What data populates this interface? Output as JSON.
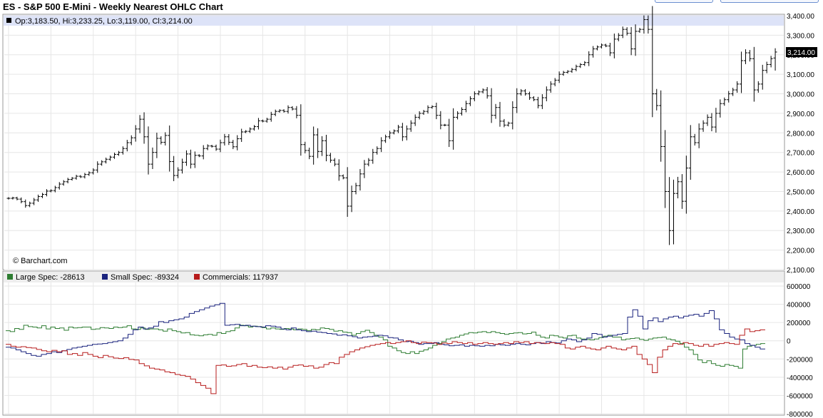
{
  "header": {
    "title": "ES - S&P 500 E-Mini - Weekly Nearest OHLC Chart"
  },
  "price_panel": {
    "ohlc_label": "Op:3,183.50, Hi:3,233.25, Lo:3,119.00, Cl:3,214.00",
    "last_price_label": "3,214.00",
    "copyright": "© Barchart.com"
  },
  "cot_panel": {
    "legend": [
      {
        "label": "Large Spec: -28613",
        "color": "#2e7d32"
      },
      {
        "label": "Small Spec: -89324",
        "color": "#1a237e"
      },
      {
        "label": "Commercials: 117937",
        "color": "#b71c1c"
      }
    ]
  },
  "colors": {
    "bar": "#000000",
    "grid": "#e6e6e6",
    "highlight": "#dde3f8",
    "legend_bg": "#eeeeee"
  },
  "chart_data": [
    {
      "type": "ohlc",
      "title": "ES - S&P 500 E-Mini - Weekly Nearest OHLC Chart",
      "ylim": [
        2100,
        3400
      ],
      "y_ticks": [
        "2,100.00",
        "2,200.00",
        "2,300.00",
        "2,400.00",
        "2,500.00",
        "2,600.00",
        "2,700.00",
        "2,800.00",
        "2,900.00",
        "3,000.00",
        "3,100.00",
        "3,200.00",
        "3,300.00",
        "3,400.00"
      ],
      "y_tick_values": [
        2100,
        2200,
        2300,
        2400,
        2500,
        2600,
        2700,
        2800,
        2900,
        3000,
        3100,
        3200,
        3300,
        3400
      ],
      "grid": true,
      "last_bar": {
        "open": 3183.5,
        "high": 3233.25,
        "low": 3119.0,
        "close": 3214.0
      },
      "close": [
        2465,
        2467,
        2461,
        2448,
        2428,
        2440,
        2457,
        2474,
        2485,
        2502,
        2505,
        2520,
        2538,
        2550,
        2562,
        2568,
        2578,
        2575,
        2587,
        2596,
        2610,
        2640,
        2652,
        2665,
        2676,
        2690,
        2700,
        2720,
        2750,
        2775,
        2820,
        2870,
        2780,
        2640,
        2700,
        2772,
        2752,
        2787,
        2653,
        2582,
        2610,
        2650,
        2692,
        2640,
        2685,
        2682,
        2720,
        2733,
        2731,
        2717,
        2750,
        2780,
        2752,
        2729,
        2770,
        2805,
        2808,
        2820,
        2832,
        2862,
        2860,
        2870,
        2895,
        2910,
        2915,
        2910,
        2930,
        2922,
        2890,
        2740,
        2710,
        2680,
        2790,
        2705,
        2760,
        2685,
        2660,
        2640,
        2580,
        2570,
        2425,
        2500,
        2530,
        2590,
        2640,
        2660,
        2700,
        2720,
        2760,
        2780,
        2800,
        2810,
        2830,
        2780,
        2820,
        2850,
        2880,
        2900,
        2910,
        2930,
        2935,
        2890,
        2840,
        2840,
        2760,
        2880,
        2900,
        2920,
        2950,
        2975,
        3000,
        3010,
        3020,
        2990,
        2890,
        2930,
        2860,
        2840,
        2850,
        2930,
        3000,
        3015,
        3000,
        2980,
        2970,
        2940,
        2980,
        3020,
        3050,
        3070,
        3100,
        3110,
        3115,
        3125,
        3140,
        3150,
        3160,
        3200,
        3230,
        3240,
        3250,
        3245,
        3210,
        3280,
        3300,
        3330,
        3310,
        3230,
        3320,
        3330,
        3380,
        3330,
        3000,
        2940,
        2730,
        2500,
        2300,
        2490,
        2550,
        2450,
        2620,
        2780,
        2750,
        2820,
        2850,
        2880,
        2830,
        2900,
        2950,
        2970,
        3000,
        3020,
        3050,
        3170,
        3210,
        3180,
        3020,
        3050,
        3120,
        3150,
        3180,
        3214
      ]
    },
    {
      "type": "line",
      "ylim": [
        -800000,
        600000
      ],
      "y_ticks": [
        "-800000",
        "-600000",
        "-400000",
        "-200000",
        "0",
        "200000",
        "400000",
        "600000"
      ],
      "y_tick_values": [
        -800000,
        -600000,
        -400000,
        -200000,
        0,
        200000,
        400000,
        600000
      ],
      "grid": true,
      "series": [
        {
          "name": "Large Spec: -28613",
          "color": "#2e7d32",
          "values": [
            110000,
            100000,
            135000,
            125000,
            170000,
            155000,
            150000,
            140000,
            165000,
            130000,
            150000,
            135000,
            140000,
            115000,
            150000,
            140000,
            145000,
            150000,
            150000,
            125000,
            130000,
            145000,
            140000,
            135000,
            150000,
            145000,
            150000,
            165000,
            130000,
            125000,
            140000,
            125000,
            130000,
            130000,
            120000,
            105000,
            130000,
            110000,
            100000,
            85000,
            90000,
            65000,
            60000,
            55000,
            65000,
            70000,
            60000,
            90000,
            80000,
            100000,
            110000,
            140000,
            170000,
            165000,
            150000,
            160000,
            155000,
            145000,
            130000,
            140000,
            130000,
            125000,
            135000,
            130000,
            120000,
            130000,
            125000,
            110000,
            125000,
            120000,
            140000,
            135000,
            125000,
            105000,
            110000,
            95000,
            90000,
            60000,
            80000,
            100000,
            115000,
            90000,
            60000,
            40000,
            10000,
            -60000,
            -80000,
            -110000,
            -130000,
            -140000,
            -120000,
            -140000,
            -115000,
            -100000,
            -80000,
            -50000,
            -30000,
            -10000,
            20000,
            30000,
            40000,
            60000,
            75000,
            90000,
            85000,
            95000,
            100000,
            90000,
            100000,
            90000,
            80000,
            70000,
            80000,
            85000,
            90000,
            75000,
            80000,
            95000,
            60000,
            40000,
            30000,
            60000,
            55000,
            40000,
            30000,
            55000,
            60000,
            30000,
            20000,
            15000,
            10000,
            20000,
            35000,
            50000,
            60000,
            40000,
            40000,
            10000,
            20000,
            25000,
            30000,
            15000,
            5000,
            20000,
            30000,
            35000,
            40000,
            20000,
            10000,
            -5000,
            -30000,
            -70000,
            -100000,
            -150000,
            -210000,
            -240000,
            -220000,
            -250000,
            -270000,
            -280000,
            -260000,
            -270000,
            -280000,
            -300000,
            -90000,
            -60000,
            -50000,
            -40000,
            -30000
          ]
        },
        {
          "name": "Small Spec: -89324",
          "color": "#1a237e",
          "values": [
            -70000,
            -80000,
            -100000,
            -120000,
            -140000,
            -160000,
            -170000,
            -150000,
            -140000,
            -120000,
            -130000,
            -110000,
            -95000,
            -80000,
            -70000,
            -60000,
            -50000,
            -40000,
            -35000,
            -30000,
            -20000,
            -10000,
            0,
            30000,
            70000,
            120000,
            150000,
            130000,
            140000,
            160000,
            210000,
            200000,
            220000,
            230000,
            240000,
            260000,
            300000,
            320000,
            340000,
            360000,
            380000,
            395000,
            410000,
            170000,
            175000,
            180000,
            165000,
            170000,
            160000,
            155000,
            150000,
            165000,
            160000,
            150000,
            130000,
            120000,
            140000,
            120000,
            110000,
            100000,
            105000,
            95000,
            90000,
            80000,
            75000,
            60000,
            65000,
            55000,
            45000,
            30000,
            40000,
            45000,
            50000,
            60000,
            55000,
            35000,
            30000,
            10000,
            -10000,
            -5000,
            -20000,
            -40000,
            -30000,
            -30000,
            -20000,
            -40000,
            -45000,
            -55000,
            -50000,
            -45000,
            -60000,
            -50000,
            -55000,
            -60000,
            -50000,
            -55000,
            -40000,
            -45000,
            -50000,
            -40000,
            -30000,
            -40000,
            -45000,
            -30000,
            -20000,
            -30000,
            -10000,
            -20000,
            -25000,
            0,
            20000,
            10000,
            -10000,
            10000,
            30000,
            80000,
            70000,
            40000,
            50000,
            60000,
            70000,
            80000,
            260000,
            340000,
            270000,
            130000,
            220000,
            250000,
            210000,
            240000,
            260000,
            270000,
            250000,
            270000,
            280000,
            290000,
            270000,
            300000,
            330000,
            240000,
            120000,
            80000,
            40000,
            20000,
            10000,
            -30000,
            -50000,
            -70000,
            -90000
          ]
        },
        {
          "name": "Commercials: 117937",
          "color": "#b71c1c",
          "values": [
            -40000,
            -60000,
            -70000,
            -65000,
            -75000,
            -80000,
            -95000,
            -110000,
            -120000,
            -105000,
            -120000,
            -110000,
            -150000,
            -140000,
            -160000,
            -130000,
            -150000,
            -170000,
            -185000,
            -160000,
            -175000,
            -190000,
            -195000,
            -185000,
            -205000,
            -210000,
            -250000,
            -275000,
            -300000,
            -310000,
            -320000,
            -340000,
            -350000,
            -370000,
            -380000,
            -390000,
            -420000,
            -460000,
            -490000,
            -520000,
            -580000,
            -270000,
            -265000,
            -280000,
            -275000,
            -260000,
            -250000,
            -280000,
            -270000,
            -290000,
            -295000,
            -285000,
            -300000,
            -290000,
            -310000,
            -290000,
            -270000,
            -265000,
            -280000,
            -275000,
            -300000,
            -290000,
            -260000,
            -240000,
            -250000,
            -180000,
            -150000,
            -120000,
            -100000,
            -80000,
            -65000,
            -50000,
            -40000,
            -30000,
            -20000,
            -30000,
            -20000,
            -10000,
            0,
            -20000,
            -30000,
            -15000,
            -20000,
            -25000,
            -40000,
            -25000,
            -30000,
            -10000,
            -20000,
            -30000,
            -20000,
            -40000,
            -30000,
            -20000,
            -30000,
            -40000,
            -30000,
            -20000,
            -30000,
            -10000,
            -20000,
            -10000,
            -30000,
            -20000,
            -25000,
            -30000,
            -20000,
            -30000,
            -40000,
            -80000,
            -90000,
            -70000,
            -60000,
            -80000,
            -90000,
            -100000,
            -80000,
            -60000,
            -80000,
            -90000,
            -100000,
            -80000,
            -60000,
            -150000,
            -200000,
            -260000,
            -350000,
            -180000,
            -100000,
            -60000,
            -30000,
            -40000,
            -20000,
            -30000,
            -50000,
            -60000,
            -40000,
            -60000,
            -40000,
            -30000,
            -20000,
            -30000,
            -40000,
            60000,
            130000,
            100000,
            110000,
            120000
          ]
        }
      ]
    }
  ]
}
